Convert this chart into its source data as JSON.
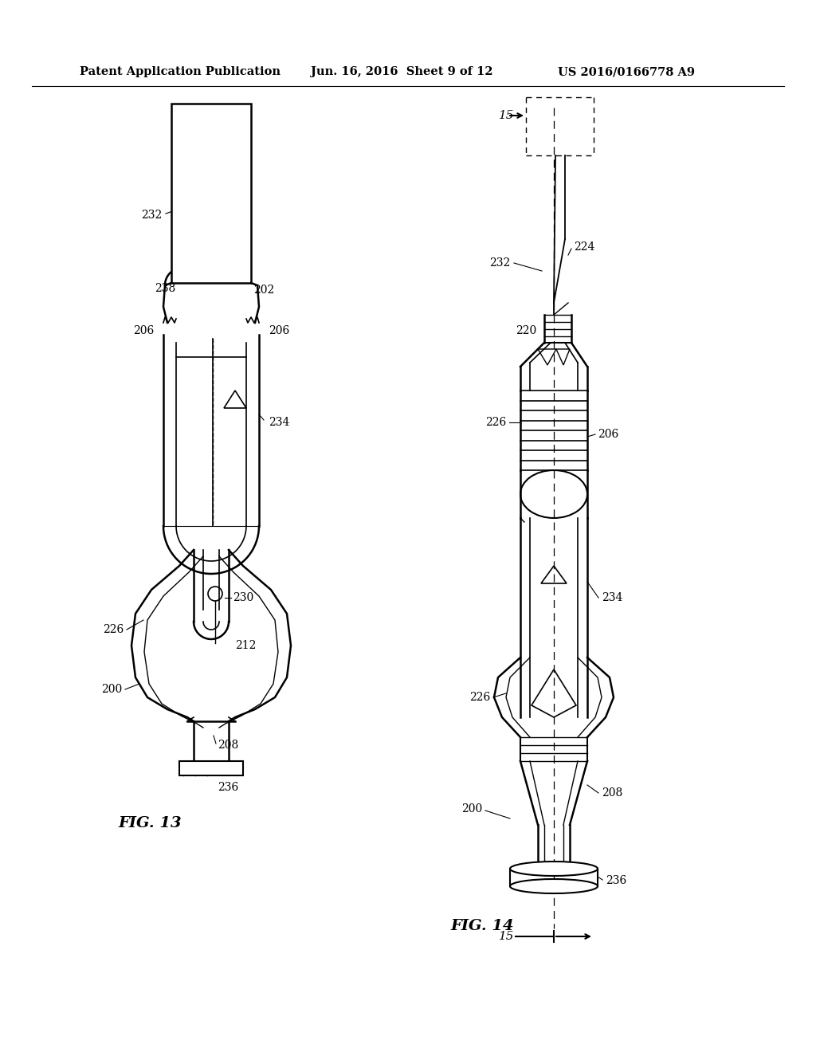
{
  "title_line1": "Patent Application Publication",
  "title_line2": "Jun. 16, 2016  Sheet 9 of 12",
  "title_line3": "US 2016/0166778 A9",
  "fig13_label": "FIG. 13",
  "fig14_label": "FIG. 14",
  "bg_color": "#ffffff",
  "line_color": "#000000",
  "ref_fontsize": 10,
  "header_fontsize": 10.5,
  "fig_label_fontsize": 14
}
